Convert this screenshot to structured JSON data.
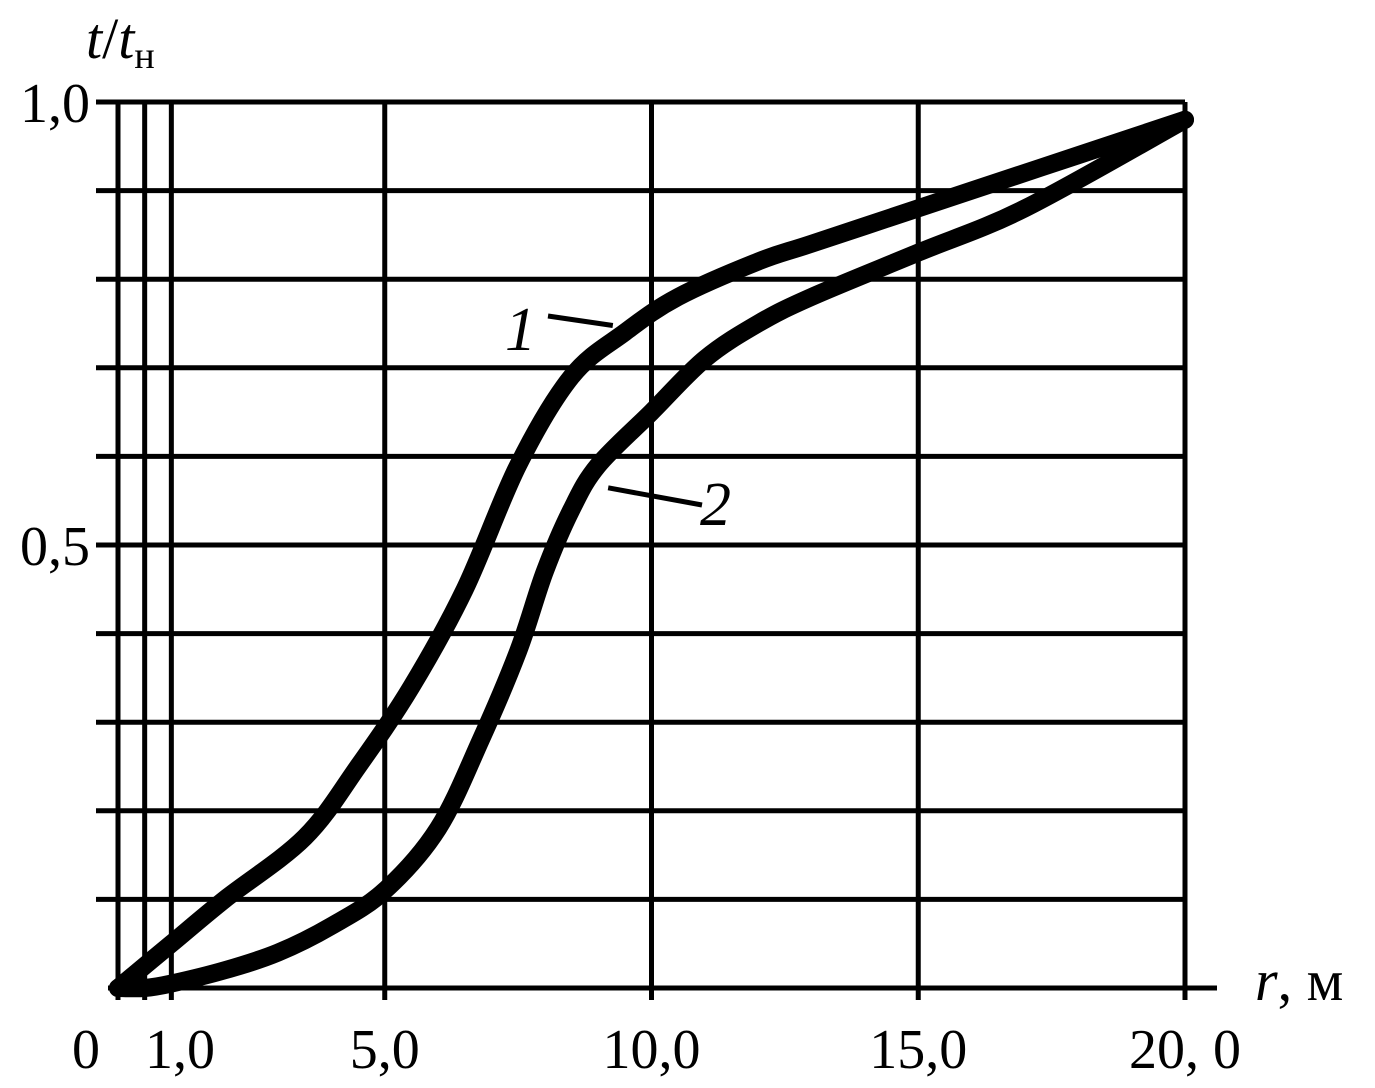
{
  "chart_data": {
    "type": "line",
    "xlabel": {
      "var": "r",
      "suffix": ", м"
    },
    "ylabel": {
      "var": "t",
      "slash": "/",
      "var2": "t",
      "sub": "н"
    },
    "xlim": [
      0,
      20
    ],
    "ylim": [
      0,
      1.0
    ],
    "x_vertical_lines": [
      0,
      0.5,
      1.0,
      5.0,
      10.0,
      15.0,
      20.0
    ],
    "y_gridlines": [
      0,
      0.1,
      0.2,
      0.3,
      0.4,
      0.5,
      0.6,
      0.7,
      0.8,
      0.9,
      1.0
    ],
    "x_tick_labels": [
      {
        "value": 0,
        "label": "0"
      },
      {
        "value": 1.0,
        "label": "1,0"
      },
      {
        "value": 5.0,
        "label": "5,0"
      },
      {
        "value": 10.0,
        "label": "10,0"
      },
      {
        "value": 15.0,
        "label": "15,0"
      },
      {
        "value": 20.0,
        "label": "20, 0"
      }
    ],
    "y_tick_labels": [
      {
        "value": 0.5,
        "label": "0,5"
      },
      {
        "value": 1.0,
        "label": "1,0"
      }
    ],
    "grid": true,
    "series": [
      {
        "name": "1",
        "x": [
          0,
          1.0,
          2.0,
          3.5,
          4.5,
          5.5,
          6.5,
          7.5,
          8.5,
          9.5,
          10.5,
          12.0,
          13.0,
          15.0,
          16.0,
          18.0,
          20.0
        ],
        "y": [
          0,
          0.05,
          0.1,
          0.17,
          0.25,
          0.34,
          0.45,
          0.59,
          0.69,
          0.74,
          0.78,
          0.82,
          0.84,
          0.88,
          0.9,
          0.94,
          0.98
        ],
        "label_text": "1",
        "label_anchor": {
          "x": 9.5,
          "y": 0.75
        }
      },
      {
        "name": "2",
        "x": [
          0,
          0.5,
          1.0,
          2.0,
          3.0,
          4.0,
          5.0,
          6.0,
          6.8,
          7.5,
          8.0,
          8.5,
          9.0,
          10.0,
          11.0,
          12.0,
          13.0,
          15.0,
          17.0,
          20.0
        ],
        "y": [
          0,
          0.0,
          0.005,
          0.02,
          0.04,
          0.07,
          0.11,
          0.18,
          0.28,
          0.38,
          0.47,
          0.54,
          0.59,
          0.65,
          0.71,
          0.75,
          0.78,
          0.83,
          0.88,
          0.98
        ],
        "label_text": "2",
        "label_anchor": {
          "x": 9.0,
          "y": 0.56
        }
      }
    ]
  }
}
